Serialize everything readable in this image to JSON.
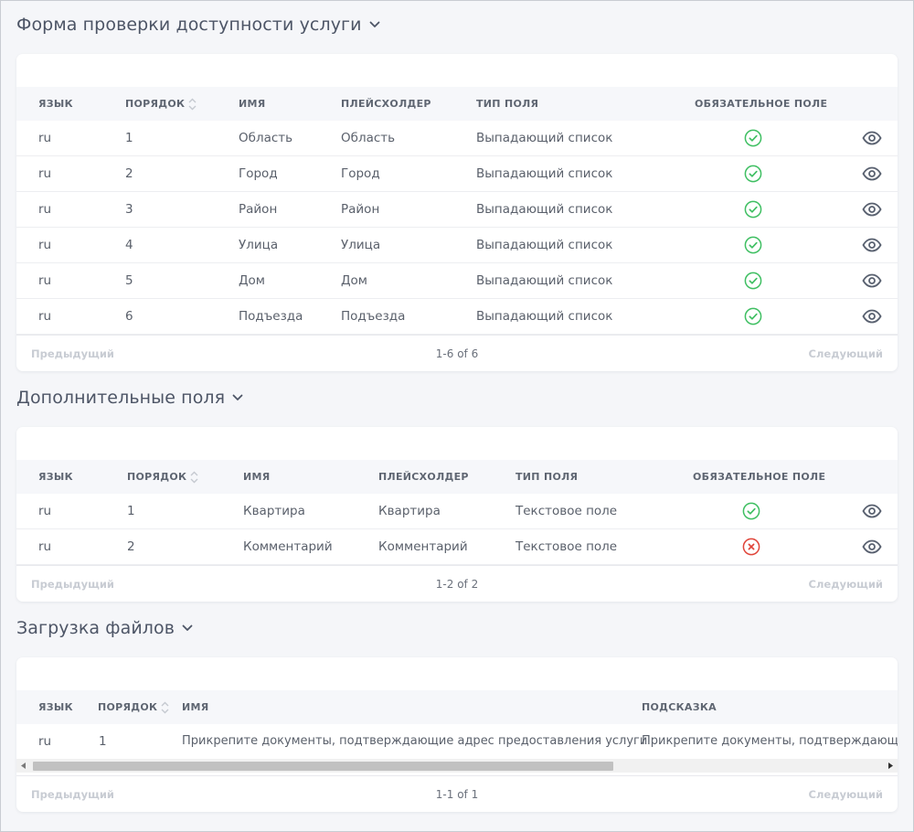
{
  "sections": [
    {
      "title": "Форма проверки доступности услуги",
      "headers": [
        "ЯЗЫК",
        "ПОРЯДОК",
        "ИМЯ",
        "ПЛЕЙСХОЛДЕР",
        "ТИП ПОЛЯ",
        "ОБЯЗАТЕЛЬНОЕ ПОЛЕ"
      ],
      "rows": [
        {
          "lang": "ru",
          "order": "1",
          "name": "Область",
          "placeholder": "Область",
          "type": "Выпадающий список",
          "required": true
        },
        {
          "lang": "ru",
          "order": "2",
          "name": "Город",
          "placeholder": "Город",
          "type": "Выпадающий список",
          "required": true
        },
        {
          "lang": "ru",
          "order": "3",
          "name": "Район",
          "placeholder": "Район",
          "type": "Выпадающий список",
          "required": true
        },
        {
          "lang": "ru",
          "order": "4",
          "name": "Улица",
          "placeholder": "Улица",
          "type": "Выпадающий список",
          "required": true
        },
        {
          "lang": "ru",
          "order": "5",
          "name": "Дом",
          "placeholder": "Дом",
          "type": "Выпадающий список",
          "required": true
        },
        {
          "lang": "ru",
          "order": "6",
          "name": "Подъезда",
          "placeholder": "Подъезда",
          "type": "Выпадающий список",
          "required": true
        }
      ],
      "pagination": {
        "prev": "Предыдущий",
        "info": "1-6 of 6",
        "next": "Следующий"
      }
    },
    {
      "title": "Дополнительные поля",
      "headers": [
        "ЯЗЫК",
        "ПОРЯДОК",
        "ИМЯ",
        "ПЛЕЙСХОЛДЕР",
        "ТИП ПОЛЯ",
        "ОБЯЗАТЕЛЬНОЕ ПОЛЕ"
      ],
      "rows": [
        {
          "lang": "ru",
          "order": "1",
          "name": "Квартира",
          "placeholder": "Квартира",
          "type": "Текстовое поле",
          "required": true
        },
        {
          "lang": "ru",
          "order": "2",
          "name": "Комментарий",
          "placeholder": "Комментарий",
          "type": "Текстовое поле",
          "required": false
        }
      ],
      "pagination": {
        "prev": "Предыдущий",
        "info": "1-2 of 2",
        "next": "Следующий"
      }
    },
    {
      "title": "Загрузка файлов",
      "headers": [
        "ЯЗЫК",
        "ПОРЯДОК",
        "ИМЯ",
        "ПОДСКАЗКА"
      ],
      "rows": [
        {
          "lang": "ru",
          "order": "1",
          "name": "Прикрепите документы, подтверждающие адрес предоставления услуги",
          "hint": "Прикрепите документы, подтверждающие адрес предоставления услуги"
        }
      ],
      "pagination": {
        "prev": "Предыдущий",
        "info": "1-1 of 1",
        "next": "Следующий"
      }
    }
  ],
  "colors": {
    "check": "#3fbf62",
    "cross": "#e0453a",
    "eye": "#596170"
  },
  "icons": [
    "chevron-down-icon",
    "sort-icon",
    "check-circle-icon",
    "x-circle-icon",
    "eye-icon"
  ]
}
